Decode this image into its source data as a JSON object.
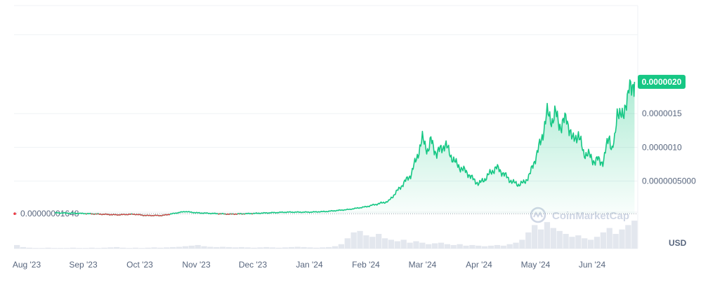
{
  "chart_data": {
    "type": "area",
    "x_tick_labels": [
      "Aug '23",
      "Sep '23",
      "Oct '23",
      "Nov '23",
      "Dec '23",
      "Jan '24",
      "Feb '24",
      "Mar '24",
      "Apr '24",
      "May '24",
      "Jun '24"
    ],
    "y_tick_labels": [
      "0.0000020",
      "0.0000015",
      "0.0000010",
      "0.0000005000"
    ],
    "y_ticks": [
      1.5e-06,
      1e-06,
      5e-07
    ],
    "ylim": [
      -5e-07,
      3.1e-06
    ],
    "baseline_label": "0.00000001648",
    "baseline_value": 1.648e-08,
    "current_price_label": "0.0000020",
    "current_price_value": 1.97e-06,
    "currency": "USD",
    "watermark": "CoinMarketCap",
    "up_color": "#16c784",
    "down_color": "#ea3943",
    "series": [
      {
        "x": [
          0.5,
          1.0,
          1.3,
          1.6,
          1.9,
          2.1,
          2.4,
          2.8,
          3.0,
          3.3,
          3.6,
          4.0,
          4.3,
          4.6,
          5.0,
          5.3,
          5.7,
          6.0,
          6.4,
          6.6,
          6.8,
          6.9,
          7.0,
          7.1,
          7.15,
          7.25,
          7.4,
          7.5,
          7.6,
          7.7,
          7.8,
          7.9,
          8.0,
          8.1,
          8.2,
          8.3,
          8.4,
          8.5,
          8.6,
          8.7,
          8.8,
          8.9,
          9.0,
          9.1,
          9.2,
          9.3,
          9.35,
          9.45,
          9.55,
          9.65,
          9.75,
          9.85,
          9.95,
          10.05,
          10.1,
          10.2,
          10.3,
          10.35,
          10.4,
          10.45,
          10.5,
          10.55,
          10.6,
          10.65,
          10.7,
          10.75
        ],
        "values": [
          3e-08,
          2e-08,
          1e-08,
          0.0,
          1e-08,
          -1e-08,
          -1e-08,
          5e-08,
          3e-08,
          2e-08,
          1e-08,
          2e-08,
          3e-08,
          4e-08,
          4e-08,
          5e-08,
          8e-08,
          1.2e-07,
          2e-07,
          4e-07,
          6e-07,
          8.5e-07,
          1.12e-06,
          9.5e-07,
          1.1e-06,
          9e-07,
          1.05e-06,
          8.8e-07,
          7.5e-07,
          6.8e-07,
          6.2e-07,
          5.2e-07,
          4.6e-07,
          5.3e-07,
          6.2e-07,
          7e-07,
          6.4e-07,
          5.5e-07,
          4.8e-07,
          4.5e-07,
          4.8e-07,
          6e-07,
          8.5e-07,
          1.1e-06,
          1.5e-06,
          1.4e-06,
          1.5e-06,
          1.3e-06,
          1.45e-06,
          1.1e-06,
          1.2e-06,
          9.2e-07,
          8.8e-07,
          7.8e-07,
          8.2e-07,
          7.8e-07,
          1.2e-06,
          9.5e-07,
          1.1e-06,
          1.6e-06,
          1.5e-06,
          1.4e-06,
          1.7e-06,
          1.9e-06,
          1.8e-06,
          1.97e-06
        ]
      }
    ],
    "volume_values": [
      0.12,
      0.05,
      0.03,
      0.02,
      0.02,
      0.03,
      0.02,
      0.02,
      0.02,
      0.03,
      0.02,
      0.02,
      0.03,
      0.02,
      0.03,
      0.04,
      0.05,
      0.03,
      0.02,
      0.03,
      0.02,
      0.03,
      0.04,
      0.03,
      0.04,
      0.05,
      0.06,
      0.08,
      0.1,
      0.12,
      0.08,
      0.06,
      0.05,
      0.06,
      0.05,
      0.04,
      0.05,
      0.04,
      0.03,
      0.04,
      0.05,
      0.04,
      0.03,
      0.04,
      0.05,
      0.06,
      0.05,
      0.04,
      0.03,
      0.04,
      0.05,
      0.08,
      0.15,
      0.35,
      0.55,
      0.6,
      0.45,
      0.4,
      0.5,
      0.35,
      0.3,
      0.25,
      0.3,
      0.2,
      0.25,
      0.2,
      0.15,
      0.18,
      0.2,
      0.15,
      0.12,
      0.15,
      0.1,
      0.12,
      0.1,
      0.08,
      0.1,
      0.12,
      0.1,
      0.15,
      0.2,
      0.3,
      0.55,
      0.8,
      0.65,
      0.9,
      0.7,
      0.6,
      0.5,
      0.4,
      0.45,
      0.35,
      0.3,
      0.4,
      0.55,
      0.7,
      0.5,
      0.65,
      0.8,
      0.95
    ]
  }
}
